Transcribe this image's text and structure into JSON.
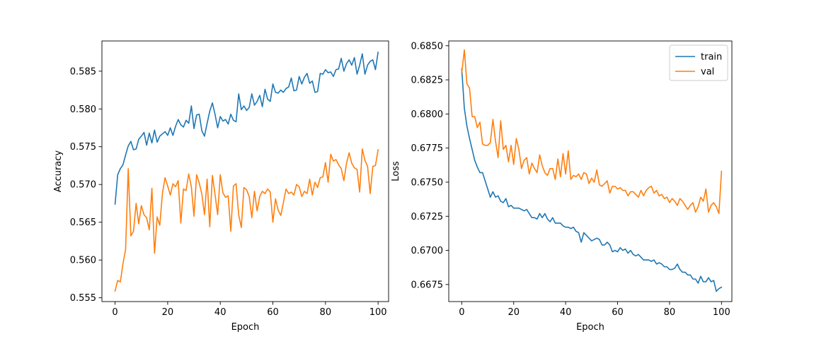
{
  "chart_data": [
    {
      "type": "line",
      "title": "",
      "xlabel": "Epoch",
      "ylabel": "Accuracy",
      "xlim": [
        -5,
        104
      ],
      "ylim": [
        0.5545,
        0.589
      ],
      "xticks": [
        0,
        20,
        40,
        60,
        80,
        100
      ],
      "yticks": [
        0.555,
        0.56,
        0.565,
        0.57,
        0.575,
        0.58,
        0.585
      ],
      "ytick_labels": [
        "0.555",
        "0.560",
        "0.565",
        "0.570",
        "0.575",
        "0.580",
        "0.585"
      ],
      "grid": false,
      "legend": null,
      "series": [
        {
          "name": "train",
          "color": "#1f77b4",
          "values": [
            0.5674,
            0.5713,
            0.5721,
            0.5726,
            0.5739,
            0.5751,
            0.5757,
            0.5746,
            0.5747,
            0.576,
            0.5764,
            0.5769,
            0.5752,
            0.5768,
            0.5755,
            0.5772,
            0.5756,
            0.5764,
            0.5767,
            0.577,
            0.5765,
            0.5775,
            0.5765,
            0.5777,
            0.5786,
            0.5779,
            0.5776,
            0.5785,
            0.5781,
            0.5804,
            0.5774,
            0.5792,
            0.5793,
            0.5771,
            0.5764,
            0.5781,
            0.5797,
            0.5808,
            0.5793,
            0.5775,
            0.579,
            0.5784,
            0.5786,
            0.578,
            0.5793,
            0.5785,
            0.5783,
            0.582,
            0.5799,
            0.5804,
            0.5798,
            0.5802,
            0.582,
            0.5805,
            0.581,
            0.5818,
            0.5803,
            0.5826,
            0.5813,
            0.581,
            0.5833,
            0.5822,
            0.5821,
            0.5825,
            0.5822,
            0.5827,
            0.5829,
            0.5841,
            0.5824,
            0.5825,
            0.5843,
            0.5833,
            0.5842,
            0.5847,
            0.5834,
            0.5837,
            0.5822,
            0.5823,
            0.5847,
            0.5846,
            0.5852,
            0.5848,
            0.5849,
            0.5843,
            0.5852,
            0.5853,
            0.5867,
            0.585,
            0.586,
            0.5865,
            0.5858,
            0.5868,
            0.5846,
            0.5858,
            0.5873,
            0.5846,
            0.5858,
            0.5863,
            0.5865,
            0.5852,
            0.5875
          ]
        },
        {
          "name": "val",
          "color": "#ff7f0e",
          "values": [
            0.5559,
            0.5573,
            0.5571,
            0.5595,
            0.5614,
            0.5721,
            0.5632,
            0.5638,
            0.5675,
            0.5648,
            0.5672,
            0.566,
            0.5656,
            0.564,
            0.5695,
            0.5609,
            0.5657,
            0.5646,
            0.5688,
            0.5709,
            0.5698,
            0.5686,
            0.5701,
            0.5697,
            0.5705,
            0.5649,
            0.5694,
            0.5692,
            0.5714,
            0.5697,
            0.5658,
            0.5713,
            0.5702,
            0.5687,
            0.566,
            0.5707,
            0.5644,
            0.5712,
            0.5687,
            0.566,
            0.5713,
            0.5689,
            0.5683,
            0.5685,
            0.5638,
            0.5698,
            0.5701,
            0.566,
            0.5643,
            0.5696,
            0.5693,
            0.5684,
            0.5656,
            0.5691,
            0.5665,
            0.5684,
            0.5691,
            0.5688,
            0.5694,
            0.569,
            0.565,
            0.5681,
            0.5666,
            0.5659,
            0.5676,
            0.5694,
            0.5688,
            0.569,
            0.5686,
            0.57,
            0.5697,
            0.5684,
            0.5691,
            0.5688,
            0.5707,
            0.5686,
            0.5703,
            0.5696,
            0.5709,
            0.571,
            0.5729,
            0.5703,
            0.574,
            0.5731,
            0.5733,
            0.5726,
            0.5721,
            0.5705,
            0.5728,
            0.5742,
            0.5728,
            0.5722,
            0.572,
            0.569,
            0.5747,
            0.5732,
            0.5724,
            0.5688,
            0.5724,
            0.5725,
            0.5746
          ]
        }
      ]
    },
    {
      "type": "line",
      "title": "",
      "xlabel": "Epoch",
      "ylabel": "Loss",
      "xlim": [
        -5,
        104
      ],
      "ylim": [
        0.66625,
        0.68535
      ],
      "xticks": [
        0,
        20,
        40,
        60,
        80,
        100
      ],
      "yticks": [
        0.6675,
        0.67,
        0.6725,
        0.675,
        0.6775,
        0.68,
        0.6825,
        0.685
      ],
      "ytick_labels": [
        "0.6675",
        "0.6700",
        "0.6725",
        "0.6750",
        "0.6775",
        "0.6800",
        "0.6825",
        "0.6850"
      ],
      "grid": false,
      "legend": "top-right",
      "series": [
        {
          "name": "train",
          "color": "#1f77b4",
          "values": [
            0.6833,
            0.6804,
            0.6791,
            0.6782,
            0.6774,
            0.6766,
            0.6761,
            0.6757,
            0.6757,
            0.6751,
            0.6745,
            0.6739,
            0.6743,
            0.6739,
            0.674,
            0.6736,
            0.6735,
            0.6738,
            0.6732,
            0.6733,
            0.6731,
            0.6731,
            0.6731,
            0.673,
            0.6729,
            0.673,
            0.6727,
            0.6724,
            0.6724,
            0.6723,
            0.6727,
            0.6724,
            0.6727,
            0.6723,
            0.6721,
            0.6724,
            0.672,
            0.672,
            0.672,
            0.6718,
            0.6717,
            0.6717,
            0.6716,
            0.6717,
            0.6714,
            0.6713,
            0.6706,
            0.6713,
            0.6711,
            0.6709,
            0.6707,
            0.6708,
            0.6709,
            0.6708,
            0.6704,
            0.6704,
            0.6706,
            0.6704,
            0.6699,
            0.67,
            0.6699,
            0.6702,
            0.67,
            0.6701,
            0.6698,
            0.67,
            0.6697,
            0.6696,
            0.6697,
            0.6695,
            0.6693,
            0.6693,
            0.6693,
            0.6692,
            0.6693,
            0.669,
            0.6691,
            0.669,
            0.6688,
            0.6688,
            0.6686,
            0.6686,
            0.6687,
            0.669,
            0.6686,
            0.6684,
            0.6684,
            0.6682,
            0.6682,
            0.6679,
            0.6679,
            0.6676,
            0.6681,
            0.6677,
            0.6677,
            0.668,
            0.6677,
            0.6678,
            0.667,
            0.6672,
            0.6673
          ]
        },
        {
          "name": "val",
          "color": "#ff7f0e",
          "values": [
            0.683,
            0.6847,
            0.6822,
            0.6819,
            0.6798,
            0.6798,
            0.679,
            0.6794,
            0.6778,
            0.6777,
            0.6777,
            0.6779,
            0.6796,
            0.678,
            0.6768,
            0.6795,
            0.6774,
            0.6777,
            0.6765,
            0.6777,
            0.6763,
            0.6782,
            0.6774,
            0.676,
            0.6766,
            0.6768,
            0.6756,
            0.6764,
            0.676,
            0.6757,
            0.677,
            0.6762,
            0.6757,
            0.6755,
            0.676,
            0.676,
            0.6752,
            0.6767,
            0.6754,
            0.6771,
            0.6756,
            0.6773,
            0.6752,
            0.6755,
            0.6754,
            0.6756,
            0.6752,
            0.6757,
            0.6756,
            0.6749,
            0.6753,
            0.675,
            0.6759,
            0.6748,
            0.6747,
            0.6749,
            0.6751,
            0.6742,
            0.6747,
            0.6747,
            0.6745,
            0.6746,
            0.6744,
            0.6744,
            0.674,
            0.6743,
            0.6743,
            0.6741,
            0.6739,
            0.6744,
            0.674,
            0.6744,
            0.6746,
            0.6747,
            0.6742,
            0.6744,
            0.674,
            0.6741,
            0.6738,
            0.6739,
            0.6735,
            0.6738,
            0.6736,
            0.6733,
            0.6738,
            0.6736,
            0.6733,
            0.673,
            0.6733,
            0.6735,
            0.6728,
            0.6732,
            0.6739,
            0.6736,
            0.6745,
            0.6728,
            0.6733,
            0.6735,
            0.6732,
            0.6727,
            0.6758
          ]
        }
      ]
    }
  ]
}
